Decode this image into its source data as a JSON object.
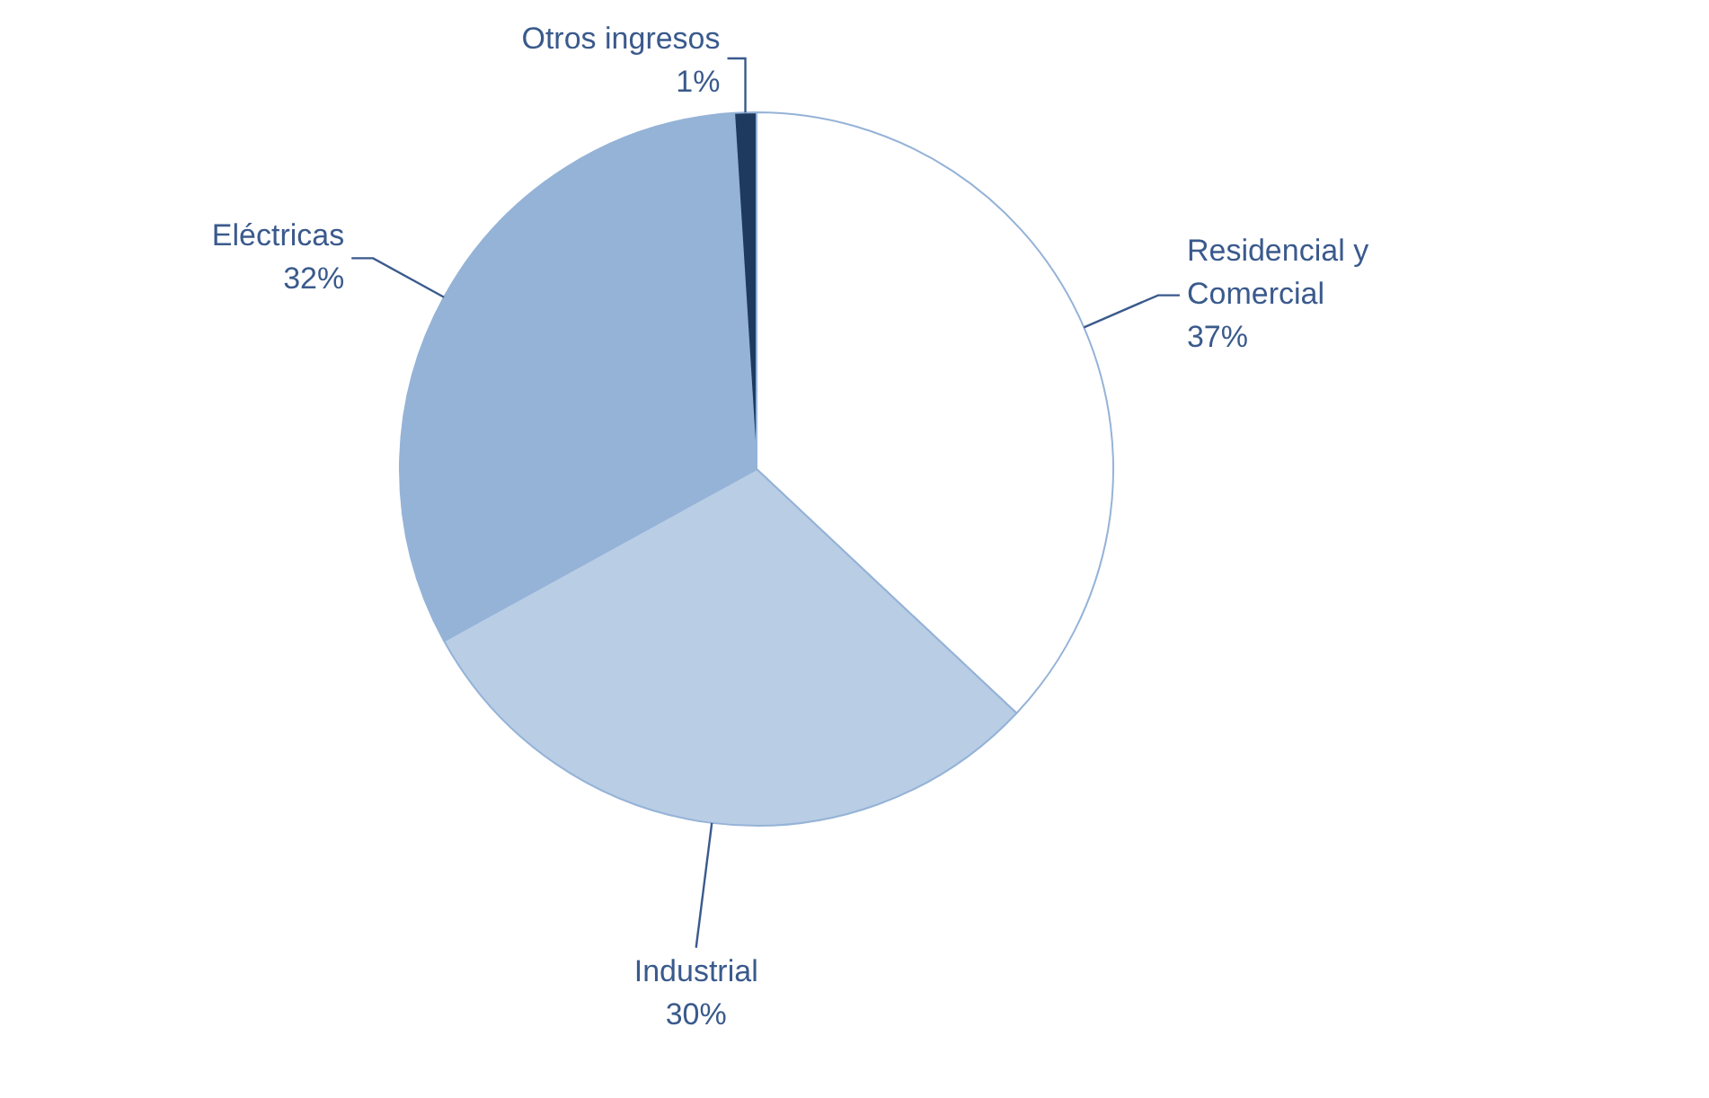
{
  "chart_data": {
    "type": "pie",
    "categories": [
      "Residencial y Comercial",
      "Industrial",
      "Eléctricas",
      "Otros ingresos"
    ],
    "values": [
      37,
      30,
      32,
      1
    ],
    "value_labels": [
      "37%",
      "30%",
      "32%",
      "1%"
    ],
    "colors": [
      "#ffffff",
      "#b9cde5",
      "#95b3d7",
      "#1f3a5f"
    ]
  }
}
